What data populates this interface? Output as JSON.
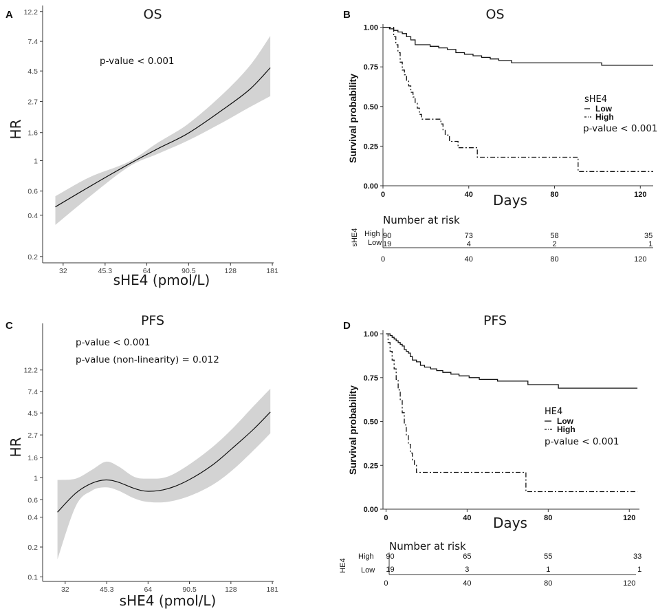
{
  "chart_data": [
    {
      "panel": "A",
      "type": "line",
      "title": "OS",
      "xlabel": "sHE4 (pmol/L)",
      "ylabel": "HR",
      "x_scale": "log",
      "y_scale": "log",
      "xlim": [
        27,
        183
      ],
      "ylim": [
        0.18,
        13.5
      ],
      "xticks": [
        32,
        45.3,
        64,
        90.5,
        128,
        181
      ],
      "xtick_labels": [
        "32",
        "45.3",
        "64",
        "90.5",
        "128",
        "181"
      ],
      "yticks": [
        0.2,
        0.4,
        0.6,
        1,
        1.6,
        2.7,
        4.5,
        7.4,
        12.2
      ],
      "ytick_labels": [
        "0.2",
        "0.4",
        "0.6",
        "1",
        "1.6",
        "2.7",
        "4.5",
        "7.4",
        "12.2"
      ],
      "annotations": [
        "p-value < 0.001"
      ],
      "series": [
        {
          "name": "HR",
          "x": [
            30,
            40,
            55,
            70,
            90,
            120,
            150,
            178
          ],
          "y": [
            0.46,
            0.65,
            0.94,
            1.22,
            1.58,
            2.35,
            3.3,
            4.75
          ]
        },
        {
          "name": "lower",
          "x": [
            30,
            40,
            55,
            70,
            90,
            120,
            150,
            178
          ],
          "y": [
            0.34,
            0.55,
            0.9,
            1.12,
            1.4,
            1.9,
            2.45,
            2.95
          ]
        },
        {
          "name": "upper",
          "x": [
            30,
            40,
            55,
            70,
            90,
            120,
            150,
            178
          ],
          "y": [
            0.55,
            0.76,
            0.98,
            1.35,
            1.85,
            3.05,
            4.9,
            8.1
          ]
        }
      ]
    },
    {
      "panel": "B",
      "type": "line",
      "subtype": "kaplan-meier",
      "title": "OS",
      "xlabel": "Days",
      "ylabel": "Survival probability",
      "xlim": [
        0,
        126
      ],
      "ylim": [
        0,
        1.02
      ],
      "xticks": [
        0,
        40,
        80,
        120
      ],
      "xtick_labels": [
        "0",
        "40",
        "80",
        "120"
      ],
      "yticks": [
        0,
        0.25,
        0.5,
        0.75,
        1
      ],
      "ytick_labels": [
        "0.00",
        "0.25",
        "0.50",
        "0.75",
        "1.00"
      ],
      "legend": {
        "title": "sHE4",
        "entries": [
          "Low",
          "High"
        ],
        "position": "right"
      },
      "annotations": [
        "p-value < 0.001"
      ],
      "series": [
        {
          "name": "Low",
          "x": [
            0,
            3,
            5,
            7,
            9,
            11,
            13,
            15,
            18,
            22,
            26,
            30,
            34,
            38,
            42,
            46,
            50,
            54,
            60,
            102,
            126
          ],
          "y": [
            1.0,
            0.99,
            0.98,
            0.97,
            0.96,
            0.94,
            0.92,
            0.89,
            0.89,
            0.88,
            0.87,
            0.86,
            0.84,
            0.83,
            0.82,
            0.81,
            0.8,
            0.79,
            0.775,
            0.76,
            0.76
          ]
        },
        {
          "name": "High",
          "x": [
            0,
            5,
            6,
            7,
            8,
            9,
            10,
            11,
            12,
            13,
            14,
            15,
            16,
            17,
            18,
            19,
            27,
            28,
            29,
            31,
            35,
            44,
            90,
            91,
            126
          ],
          "y": [
            1.0,
            0.94,
            0.89,
            0.84,
            0.78,
            0.73,
            0.7,
            0.66,
            0.63,
            0.59,
            0.56,
            0.52,
            0.49,
            0.45,
            0.42,
            0.42,
            0.39,
            0.35,
            0.32,
            0.28,
            0.24,
            0.18,
            0.18,
            0.09,
            0.09
          ]
        }
      ],
      "risk_table": {
        "title": "Number at risk",
        "group_label": "sHE4",
        "rows": [
          {
            "label": "High",
            "values": [
              "90",
              "73",
              "58",
              "35"
            ]
          },
          {
            "label": "Low",
            "values": [
              "19",
              "4",
              "2",
              "1"
            ]
          }
        ],
        "times": [
          "0",
          "40",
          "80",
          "120"
        ]
      }
    },
    {
      "panel": "C",
      "type": "line",
      "title": "PFS",
      "xlabel": "sHE4 (pmol/L)",
      "ylabel": "HR",
      "x_scale": "log",
      "y_scale": "log",
      "xlim": [
        26.5,
        183
      ],
      "ylim": [
        0.09,
        36
      ],
      "xticks": [
        32,
        45.3,
        64,
        90.5,
        128,
        181
      ],
      "xtick_labels": [
        "32",
        "45.3",
        "64",
        "90.5",
        "128",
        "181"
      ],
      "yticks": [
        0.1,
        0.2,
        0.4,
        0.6,
        1,
        1.6,
        2.7,
        4.5,
        7.4,
        12.2
      ],
      "ytick_labels": [
        "0.1",
        "0.2",
        "0.4",
        "0.6",
        "1",
        "1.6",
        "2.7",
        "4.5",
        "7.4",
        "12.2"
      ],
      "annotations": [
        "p-value < 0.001",
        "p-value (non-linearity) = 0.012"
      ],
      "series": [
        {
          "name": "HR",
          "x": [
            30,
            35,
            40,
            45,
            50,
            57,
            64,
            75,
            90,
            110,
            130,
            155,
            178
          ],
          "y": [
            0.45,
            0.7,
            0.88,
            0.95,
            0.9,
            0.78,
            0.73,
            0.77,
            0.95,
            1.35,
            2.0,
            3.1,
            4.6
          ]
        },
        {
          "name": "lower",
          "x": [
            30,
            35,
            40,
            45,
            50,
            57,
            64,
            75,
            90,
            110,
            130,
            155,
            178
          ],
          "y": [
            0.15,
            0.52,
            0.74,
            0.8,
            0.74,
            0.62,
            0.57,
            0.57,
            0.65,
            0.85,
            1.2,
            1.9,
            2.8
          ]
        },
        {
          "name": "upper",
          "x": [
            30,
            35,
            40,
            45,
            50,
            57,
            64,
            75,
            90,
            110,
            130,
            155,
            178
          ],
          "y": [
            0.95,
            0.98,
            1.2,
            1.45,
            1.3,
            1.02,
            0.98,
            1.02,
            1.35,
            2.05,
            3.15,
            5.3,
            7.9
          ]
        }
      ]
    },
    {
      "panel": "D",
      "type": "line",
      "subtype": "kaplan-meier",
      "title": "PFS",
      "xlabel": "Days",
      "ylabel": "Survival probability",
      "xlim": [
        -1.5,
        125
      ],
      "ylim": [
        0,
        1.02
      ],
      "xticks": [
        0,
        40,
        80,
        120
      ],
      "xtick_labels": [
        "0",
        "40",
        "80",
        "120"
      ],
      "yticks": [
        0,
        0.25,
        0.5,
        0.75,
        1
      ],
      "ytick_labels": [
        "0.00",
        "0.25",
        "0.50",
        "0.75",
        "1.00"
      ],
      "legend": {
        "title": "HE4",
        "entries": [
          "Low",
          "High"
        ],
        "position": "right"
      },
      "annotations": [
        "p-value < 0.001"
      ],
      "series": [
        {
          "name": "Low",
          "x": [
            0,
            2,
            3,
            4,
            5,
            6,
            7,
            8,
            9,
            10,
            11,
            12,
            13,
            15,
            17,
            19,
            22,
            25,
            28,
            32,
            36,
            41,
            46,
            55,
            70,
            85,
            124
          ],
          "y": [
            1.0,
            0.99,
            0.98,
            0.97,
            0.96,
            0.95,
            0.94,
            0.93,
            0.91,
            0.9,
            0.89,
            0.87,
            0.85,
            0.84,
            0.82,
            0.81,
            0.8,
            0.79,
            0.78,
            0.77,
            0.76,
            0.75,
            0.74,
            0.73,
            0.71,
            0.69,
            0.69
          ]
        },
        {
          "name": "High",
          "x": [
            0,
            1,
            2,
            3,
            4,
            5,
            6,
            7,
            8,
            9,
            10,
            11,
            12,
            13,
            14,
            15,
            68,
            69,
            124
          ],
          "y": [
            1.0,
            0.95,
            0.9,
            0.85,
            0.8,
            0.74,
            0.68,
            0.62,
            0.55,
            0.48,
            0.42,
            0.37,
            0.32,
            0.28,
            0.25,
            0.21,
            0.21,
            0.1,
            0.1
          ]
        }
      ],
      "risk_table": {
        "title": "Number at risk",
        "group_label": "HE4",
        "rows": [
          {
            "label": "High",
            "values": [
              "90",
              "65",
              "55",
              "33"
            ]
          },
          {
            "label": "Low",
            "values": [
              "19",
              "3",
              "1",
              "1"
            ]
          }
        ],
        "times": [
          "0",
          "40",
          "80",
          "120"
        ]
      }
    }
  ]
}
